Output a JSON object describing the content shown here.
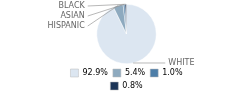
{
  "chart_data": {
    "type": "pie",
    "categories": [
      "WHITE",
      "HISPANIC",
      "ASIAN",
      "BLACK"
    ],
    "values": [
      92.9,
      5.4,
      1.0,
      0.8
    ],
    "value_labels": [
      "92.9%",
      "5.4%",
      "1.0%",
      "0.8%"
    ],
    "colors": [
      "#dce6f1",
      "#8eaabf",
      "#4d7ea8",
      "#1c3557"
    ],
    "legend": "bottom"
  }
}
